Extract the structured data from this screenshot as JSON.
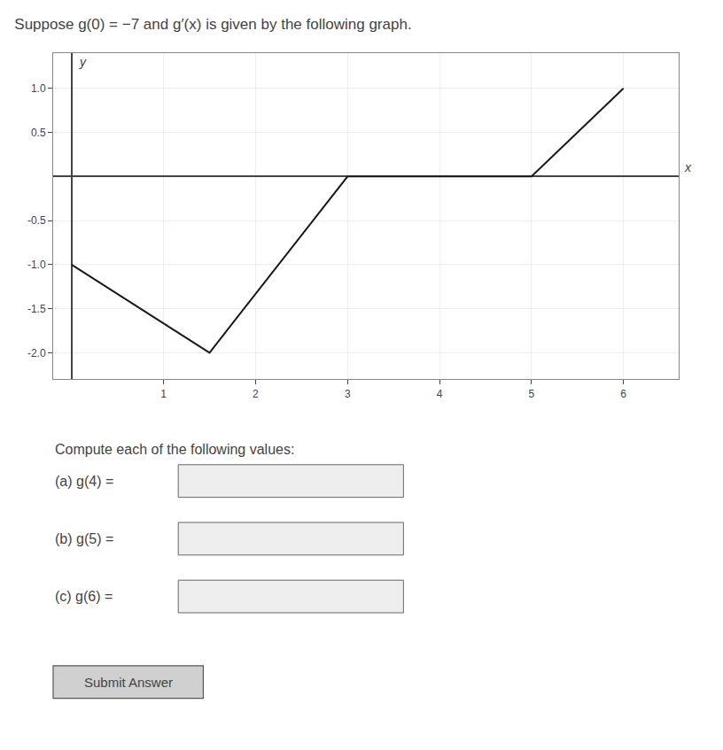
{
  "chart_data": {
    "type": "line",
    "title": "Suppose g(0) = −7 and g′(x) is given by the following graph.",
    "x_label": "x",
    "y_label": "y",
    "x": [
      0,
      1.5,
      3,
      5,
      6
    ],
    "values": [
      -1,
      -2,
      0,
      0,
      1
    ],
    "color": "#1a1a1a",
    "xlim": [
      -0.2,
      6.6
    ],
    "ylim": [
      -2.3,
      1.4
    ],
    "xticks": [
      1,
      2,
      3,
      4,
      5,
      6
    ],
    "yticks": [
      {
        "value": -2.0,
        "label": "-2.0"
      },
      -1.5,
      {
        "value": -1.0,
        "label": "-1.0"
      },
      -0.5,
      0.5,
      {
        "value": 1.0,
        "label": "1.0"
      }
    ],
    "grid": true,
    "annotations": [
      "Compute each of the following values:",
      "(a) g(4) =",
      "(b) g(5) =",
      "(c) g(6) =",
      "Submit Answer"
    ]
  }
}
